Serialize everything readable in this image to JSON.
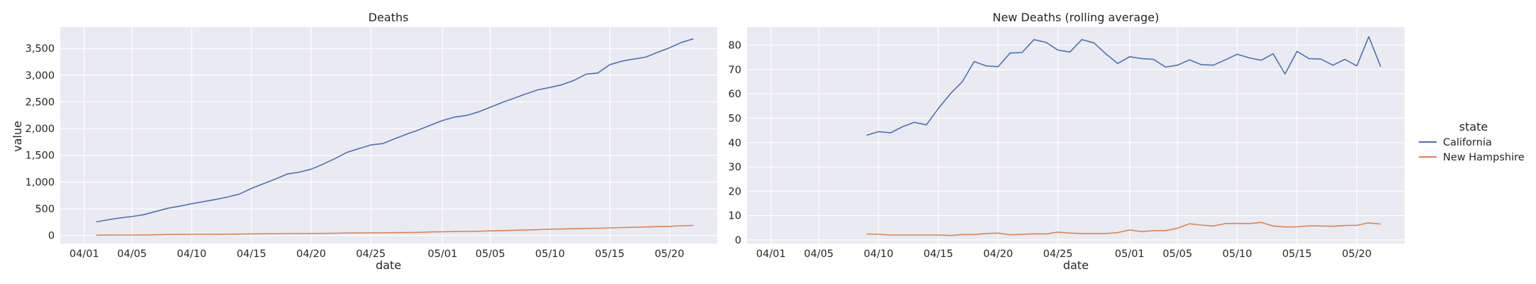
{
  "chart_data": [
    {
      "type": "line",
      "title": "Deaths",
      "xlabel": "date",
      "ylabel": "value",
      "x_tick_labels": [
        "04/01",
        "04/05",
        "04/10",
        "04/15",
        "04/20",
        "04/25",
        "05/01",
        "05/05",
        "05/10",
        "05/15",
        "05/20"
      ],
      "x_tick_dates": [
        "2020-04-01",
        "2020-04-05",
        "2020-04-10",
        "2020-04-15",
        "2020-04-20",
        "2020-04-25",
        "2020-05-01",
        "2020-05-05",
        "2020-05-10",
        "2020-05-15",
        "2020-05-20"
      ],
      "y_tick_labels": [
        "0",
        "500",
        "1,000",
        "1,500",
        "2,000",
        "2,500",
        "3,000",
        "3,500"
      ],
      "y_ticks": [
        0,
        500,
        1000,
        1500,
        2000,
        2500,
        3000,
        3500
      ],
      "xlim": [
        "2020-03-30",
        "2020-05-24"
      ],
      "ylim": [
        -150,
        3900
      ],
      "grid": true,
      "series": [
        {
          "name": "California",
          "color": "#4c72b0",
          "points": [
            [
              "2020-04-02",
              255
            ],
            [
              "2020-04-03",
              295
            ],
            [
              "2020-04-04",
              330
            ],
            [
              "2020-04-05",
              355
            ],
            [
              "2020-04-06",
              390
            ],
            [
              "2020-04-07",
              450
            ],
            [
              "2020-04-08",
              510
            ],
            [
              "2020-04-09",
              550
            ],
            [
              "2020-04-10",
              595
            ],
            [
              "2020-04-11",
              635
            ],
            [
              "2020-04-12",
              675
            ],
            [
              "2020-04-13",
              720
            ],
            [
              "2020-04-14",
              775
            ],
            [
              "2020-04-15",
              880
            ],
            [
              "2020-04-16",
              970
            ],
            [
              "2020-04-17",
              1055
            ],
            [
              "2020-04-18",
              1150
            ],
            [
              "2020-04-19",
              1185
            ],
            [
              "2020-04-20",
              1240
            ],
            [
              "2020-04-21",
              1335
            ],
            [
              "2020-04-22",
              1440
            ],
            [
              "2020-04-23",
              1555
            ],
            [
              "2020-04-24",
              1625
            ],
            [
              "2020-04-25",
              1695
            ],
            [
              "2020-04-26",
              1720
            ],
            [
              "2020-04-27",
              1810
            ],
            [
              "2020-04-28",
              1895
            ],
            [
              "2020-04-29",
              1975
            ],
            [
              "2020-04-30",
              2065
            ],
            [
              "2020-05-01",
              2150
            ],
            [
              "2020-05-02",
              2215
            ],
            [
              "2020-05-03",
              2245
            ],
            [
              "2020-05-04",
              2310
            ],
            [
              "2020-05-05",
              2400
            ],
            [
              "2020-05-06",
              2490
            ],
            [
              "2020-05-07",
              2570
            ],
            [
              "2020-05-08",
              2650
            ],
            [
              "2020-05-09",
              2725
            ],
            [
              "2020-05-10",
              2770
            ],
            [
              "2020-05-11",
              2820
            ],
            [
              "2020-05-12",
              2900
            ],
            [
              "2020-05-13",
              3015
            ],
            [
              "2020-05-14",
              3040
            ],
            [
              "2020-05-15",
              3195
            ],
            [
              "2020-05-16",
              3260
            ],
            [
              "2020-05-17",
              3300
            ],
            [
              "2020-05-18",
              3335
            ],
            [
              "2020-05-19",
              3425
            ],
            [
              "2020-05-20",
              3510
            ],
            [
              "2020-05-21",
              3610
            ],
            [
              "2020-05-22",
              3680
            ]
          ]
        },
        {
          "name": "New Hampshire",
          "color": "#dd8452",
          "points": [
            [
              "2020-04-02",
              5
            ],
            [
              "2020-04-03",
              8
            ],
            [
              "2020-04-04",
              9
            ],
            [
              "2020-04-05",
              10
            ],
            [
              "2020-04-06",
              11
            ],
            [
              "2020-04-07",
              13
            ],
            [
              "2020-04-08",
              18
            ],
            [
              "2020-04-09",
              21
            ],
            [
              "2020-04-10",
              22
            ],
            [
              "2020-04-11",
              23
            ],
            [
              "2020-04-12",
              24
            ],
            [
              "2020-04-13",
              25
            ],
            [
              "2020-04-14",
              27
            ],
            [
              "2020-04-15",
              30
            ],
            [
              "2020-04-16",
              32
            ],
            [
              "2020-04-17",
              34
            ],
            [
              "2020-04-18",
              36
            ],
            [
              "2020-04-19",
              37
            ],
            [
              "2020-04-20",
              38
            ],
            [
              "2020-04-21",
              40
            ],
            [
              "2020-04-22",
              42
            ],
            [
              "2020-04-23",
              46
            ],
            [
              "2020-04-24",
              48
            ],
            [
              "2020-04-25",
              51
            ],
            [
              "2020-04-26",
              51
            ],
            [
              "2020-04-27",
              54
            ],
            [
              "2020-04-28",
              56
            ],
            [
              "2020-04-29",
              60
            ],
            [
              "2020-04-30",
              66
            ],
            [
              "2020-05-01",
              70
            ],
            [
              "2020-05-02",
              73
            ],
            [
              "2020-05-03",
              76
            ],
            [
              "2020-05-04",
              80
            ],
            [
              "2020-05-05",
              86
            ],
            [
              "2020-05-06",
              92
            ],
            [
              "2020-05-07",
              98
            ],
            [
              "2020-05-08",
              103
            ],
            [
              "2020-05-09",
              110
            ],
            [
              "2020-05-10",
              118
            ],
            [
              "2020-05-11",
              121
            ],
            [
              "2020-05-12",
              128
            ],
            [
              "2020-05-13",
              133
            ],
            [
              "2020-05-14",
              136
            ],
            [
              "2020-05-15",
              142
            ],
            [
              "2020-05-16",
              149
            ],
            [
              "2020-05-17",
              154
            ],
            [
              "2020-05-18",
              159
            ],
            [
              "2020-05-19",
              166
            ],
            [
              "2020-05-20",
              172
            ],
            [
              "2020-05-21",
              182
            ],
            [
              "2020-05-22",
              190
            ]
          ]
        }
      ]
    },
    {
      "type": "line",
      "title": "New Deaths (rolling average)",
      "xlabel": "date",
      "ylabel": "",
      "x_tick_labels": [
        "04/01",
        "04/05",
        "04/10",
        "04/15",
        "04/20",
        "04/25",
        "05/01",
        "05/05",
        "05/10",
        "05/15",
        "05/20"
      ],
      "x_tick_dates": [
        "2020-04-01",
        "2020-04-05",
        "2020-04-10",
        "2020-04-15",
        "2020-04-20",
        "2020-04-25",
        "2020-05-01",
        "2020-05-05",
        "2020-05-10",
        "2020-05-15",
        "2020-05-20"
      ],
      "y_tick_labels": [
        "0",
        "10",
        "20",
        "30",
        "40",
        "50",
        "60",
        "70",
        "80"
      ],
      "y_ticks": [
        0,
        10,
        20,
        30,
        40,
        50,
        60,
        70,
        80
      ],
      "xlim": [
        "2020-03-30",
        "2020-05-24"
      ],
      "ylim": [
        -1.5,
        87.5
      ],
      "grid": true,
      "series": [
        {
          "name": "California",
          "color": "#4c72b0",
          "points": [
            [
              "2020-04-09",
              43
            ],
            [
              "2020-04-10",
              44.5
            ],
            [
              "2020-04-11",
              44
            ],
            [
              "2020-04-12",
              46.5
            ],
            [
              "2020-04-13",
              48.3
            ],
            [
              "2020-04-14",
              47.3
            ],
            [
              "2020-04-15",
              54
            ],
            [
              "2020-04-16",
              60
            ],
            [
              "2020-04-17",
              65
            ],
            [
              "2020-04-18",
              73.3
            ],
            [
              "2020-04-19",
              71.5
            ],
            [
              "2020-04-20",
              71.2
            ],
            [
              "2020-04-21",
              76.8
            ],
            [
              "2020-04-22",
              77
            ],
            [
              "2020-04-23",
              82.3
            ],
            [
              "2020-04-24",
              81.2
            ],
            [
              "2020-04-25",
              78
            ],
            [
              "2020-04-26",
              77.2
            ],
            [
              "2020-04-27",
              82.3
            ],
            [
              "2020-04-28",
              81
            ],
            [
              "2020-04-29",
              76.5
            ],
            [
              "2020-04-30",
              72.5
            ],
            [
              "2020-05-01",
              75.3
            ],
            [
              "2020-05-02",
              74.5
            ],
            [
              "2020-05-03",
              74.2
            ],
            [
              "2020-05-04",
              71
            ],
            [
              "2020-05-05",
              71.8
            ],
            [
              "2020-05-06",
              74
            ],
            [
              "2020-05-07",
              72
            ],
            [
              "2020-05-08",
              71.8
            ],
            [
              "2020-05-09",
              74
            ],
            [
              "2020-05-10",
              76.3
            ],
            [
              "2020-05-11",
              74.8
            ],
            [
              "2020-05-12",
              73.8
            ],
            [
              "2020-05-13",
              76.5
            ],
            [
              "2020-05-14",
              68.2
            ],
            [
              "2020-05-15",
              77.5
            ],
            [
              "2020-05-16",
              74.5
            ],
            [
              "2020-05-17",
              74.3
            ],
            [
              "2020-05-18",
              71.8
            ],
            [
              "2020-05-19",
              74.2
            ],
            [
              "2020-05-20",
              71.5
            ],
            [
              "2020-05-21",
              83.5
            ],
            [
              "2020-05-22",
              71.2
            ]
          ]
        },
        {
          "name": "New Hampshire",
          "color": "#dd8452",
          "points": [
            [
              "2020-04-09",
              2.4
            ],
            [
              "2020-04-10",
              2.3
            ],
            [
              "2020-04-11",
              2
            ],
            [
              "2020-04-12",
              2
            ],
            [
              "2020-04-13",
              2
            ],
            [
              "2020-04-14",
              2
            ],
            [
              "2020-04-15",
              2
            ],
            [
              "2020-04-16",
              1.8
            ],
            [
              "2020-04-17",
              2.2
            ],
            [
              "2020-04-18",
              2.2
            ],
            [
              "2020-04-19",
              2.6
            ],
            [
              "2020-04-20",
              2.8
            ],
            [
              "2020-04-21",
              2.1
            ],
            [
              "2020-04-22",
              2.3
            ],
            [
              "2020-04-23",
              2.5
            ],
            [
              "2020-04-24",
              2.4
            ],
            [
              "2020-04-25",
              3.2
            ],
            [
              "2020-04-26",
              2.8
            ],
            [
              "2020-04-27",
              2.6
            ],
            [
              "2020-04-28",
              2.6
            ],
            [
              "2020-04-29",
              2.6
            ],
            [
              "2020-04-30",
              3
            ],
            [
              "2020-05-01",
              4.1
            ],
            [
              "2020-05-02",
              3.4
            ],
            [
              "2020-05-03",
              3.8
            ],
            [
              "2020-05-04",
              3.8
            ],
            [
              "2020-05-05",
              4.8
            ],
            [
              "2020-05-06",
              6.6
            ],
            [
              "2020-05-07",
              6.1
            ],
            [
              "2020-05-08",
              5.7
            ],
            [
              "2020-05-09",
              6.7
            ],
            [
              "2020-05-10",
              6.8
            ],
            [
              "2020-05-11",
              6.7
            ],
            [
              "2020-05-12",
              7.2
            ],
            [
              "2020-05-13",
              5.7
            ],
            [
              "2020-05-14",
              5.3
            ],
            [
              "2020-05-15",
              5.4
            ],
            [
              "2020-05-16",
              5.8
            ],
            [
              "2020-05-17",
              5.7
            ],
            [
              "2020-05-18",
              5.6
            ],
            [
              "2020-05-19",
              5.9
            ],
            [
              "2020-05-20",
              6
            ],
            [
              "2020-05-21",
              7
            ],
            [
              "2020-05-22",
              6.5
            ]
          ]
        }
      ]
    }
  ],
  "legend": {
    "title": "state",
    "placement": "right",
    "items": [
      {
        "name": "California",
        "color": "#4c72b0"
      },
      {
        "name": "New Hampshire",
        "color": "#dd8452"
      }
    ]
  },
  "style": {
    "plot_background": "#eaeaf2",
    "grid_color": "#ffffff",
    "text_color": "#262626"
  }
}
